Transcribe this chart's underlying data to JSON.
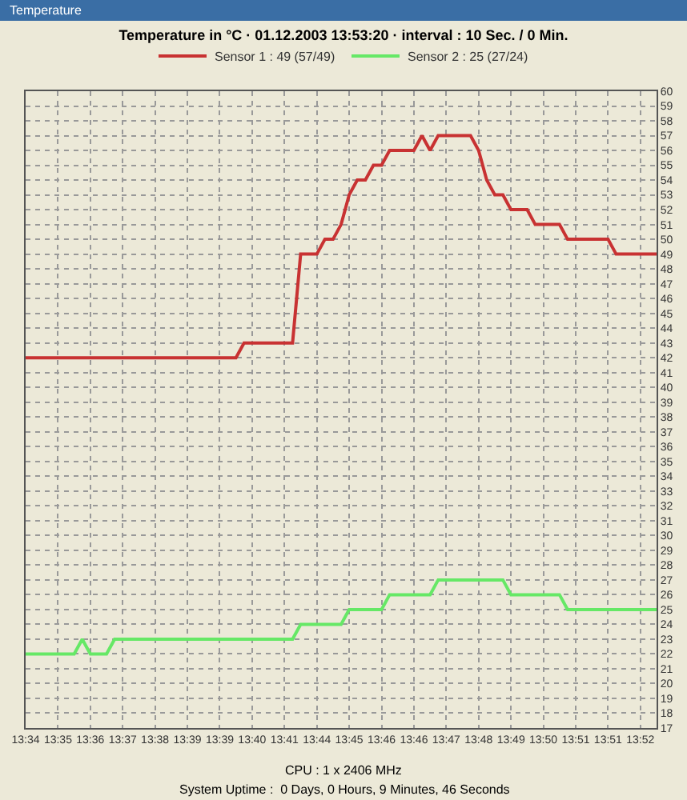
{
  "chart_data": {
    "type": "line",
    "title": "Temperature in °C · 01.12.2003 13:53:20 · interval : 10 Sec. / 0 Min.",
    "annotations": [
      "Temperature",
      "CPU : 1 x 2406 MHz",
      "System Uptime :  0 Days, 0 Hours, 9 Minutes, 46 Seconds"
    ],
    "categories": [
      "13:34",
      null,
      null,
      null,
      "13:35",
      null,
      null,
      null,
      "13:36",
      null,
      null,
      null,
      "13:37",
      null,
      null,
      null,
      "13:38",
      null,
      null,
      null,
      "13:39",
      null,
      null,
      null,
      "13:39",
      null,
      null,
      null,
      "13:40",
      null,
      null,
      null,
      "13:41",
      null,
      null,
      null,
      "13:44",
      null,
      null,
      null,
      "13:45",
      null,
      null,
      null,
      "13:46",
      null,
      null,
      null,
      "13:46",
      null,
      null,
      null,
      "13:47",
      null,
      null,
      null,
      "13:48",
      null,
      null,
      null,
      "13:49",
      null,
      null,
      null,
      "13:50",
      null,
      null,
      null,
      "13:51",
      null,
      null,
      null,
      "13:51",
      null,
      null,
      null,
      "13:52",
      null,
      null
    ],
    "series": [
      {
        "name": "Sensor 1 : 49 (57/49)",
        "color": "#c83232",
        "values": [
          42,
          42,
          42,
          42,
          42,
          42,
          42,
          42,
          42,
          42,
          42,
          42,
          42,
          42,
          42,
          42,
          42,
          42,
          42,
          42,
          42,
          42,
          42,
          42,
          42,
          42,
          42,
          43,
          43,
          43,
          43,
          43,
          43,
          43,
          49,
          49,
          49,
          50,
          50,
          51,
          53,
          54,
          54,
          55,
          55,
          56,
          56,
          56,
          56,
          57,
          56,
          57,
          57,
          57,
          57,
          57,
          56,
          54,
          53,
          53,
          52,
          52,
          52,
          51,
          51,
          51,
          51,
          50,
          50,
          50,
          50,
          50,
          50,
          49,
          49,
          49,
          49,
          49,
          49
        ]
      },
      {
        "name": "Sensor 2 : 25 (27/24)",
        "color": "#66e866",
        "values": [
          22,
          22,
          22,
          22,
          22,
          22,
          22,
          23,
          22,
          22,
          22,
          23,
          23,
          23,
          23,
          23,
          23,
          23,
          23,
          23,
          23,
          23,
          23,
          23,
          23,
          23,
          23,
          23,
          23,
          23,
          23,
          23,
          23,
          23,
          24,
          24,
          24,
          24,
          24,
          24,
          25,
          25,
          25,
          25,
          25,
          26,
          26,
          26,
          26,
          26,
          26,
          27,
          27,
          27,
          27,
          27,
          27,
          27,
          27,
          27,
          26,
          26,
          26,
          26,
          26,
          26,
          26,
          25,
          25,
          25,
          25,
          25,
          25,
          25,
          25,
          25,
          25,
          25,
          25
        ]
      }
    ],
    "ylim": [
      17,
      60
    ],
    "yticks": [
      17,
      18,
      19,
      20,
      21,
      22,
      23,
      24,
      25,
      26,
      27,
      28,
      29,
      30,
      31,
      32,
      33,
      34,
      35,
      36,
      37,
      38,
      39,
      40,
      41,
      42,
      43,
      44,
      45,
      46,
      47,
      48,
      49,
      50,
      51,
      52,
      53,
      54,
      55,
      56,
      57,
      58,
      59,
      60
    ],
    "grid": true,
    "legend": "top",
    "line_style": "solid",
    "marker": "none"
  }
}
